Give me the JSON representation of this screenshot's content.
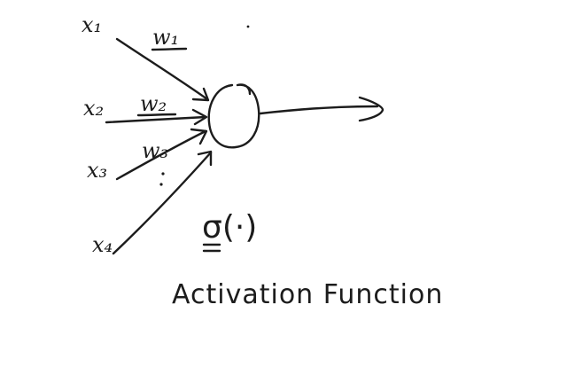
{
  "diagram": {
    "inputs": [
      {
        "label": "x₁",
        "weight": "w₁",
        "weight_underlined": true
      },
      {
        "label": "x₂",
        "weight": "w₂",
        "weight_underlined": true
      },
      {
        "label": "x₃",
        "weight": "w₃",
        "weight_underlined": false
      },
      {
        "label": "x₄",
        "weight": "",
        "weight_underlined": false
      }
    ],
    "activation_symbol": "σ(·)",
    "caption": "Activation Function",
    "ink_color": "#1c1c1c",
    "background": "#ffffff"
  }
}
